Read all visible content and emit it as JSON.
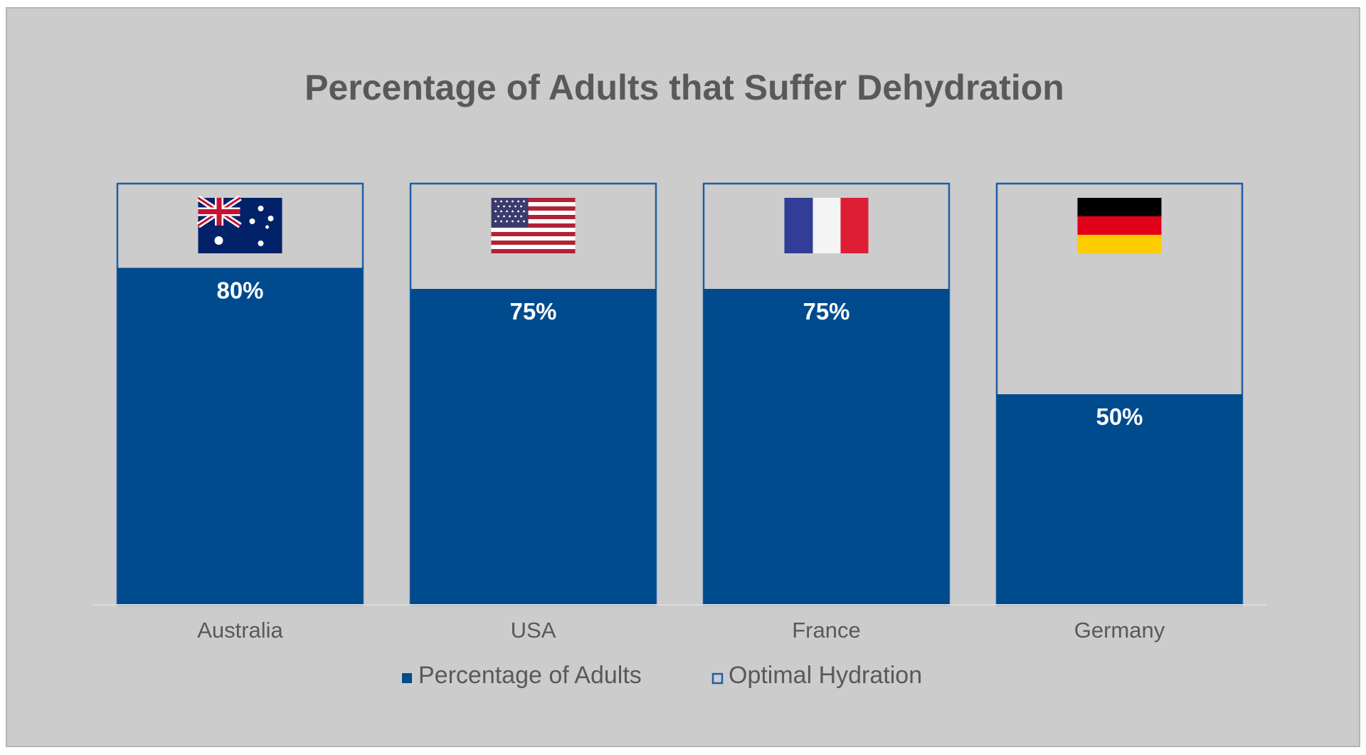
{
  "chart_data": {
    "type": "bar",
    "title": "Percentage of Adults that Suffer Dehydration",
    "categories": [
      "Australia",
      "USA",
      "France",
      "Germany"
    ],
    "series": [
      {
        "name": "Percentage of Adults",
        "values": [
          80,
          75,
          75,
          50
        ],
        "data_labels": [
          "80%",
          "75%",
          "75%",
          "50%"
        ]
      },
      {
        "name": "Optimal Hydration",
        "values": [
          100,
          100,
          100,
          100
        ]
      }
    ],
    "ylim": [
      0,
      100
    ],
    "grid": false,
    "legend_position": "bottom",
    "colors": {
      "filled": "#004b8d",
      "outline": "#1f5ea8",
      "background": "#cccccc",
      "text": "#595959"
    },
    "category_icons": [
      "australia-flag-icon",
      "usa-flag-icon",
      "france-flag-icon",
      "germany-flag-icon"
    ]
  }
}
